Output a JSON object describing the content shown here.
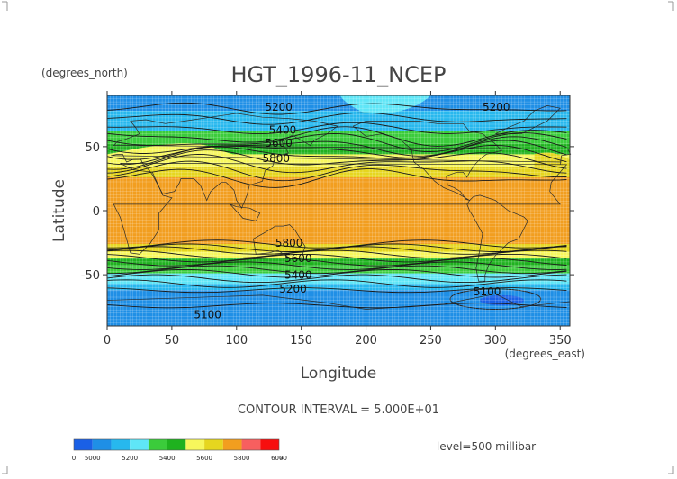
{
  "chart_data": {
    "type": "contour",
    "title": "HGT_1996-11_NCEP",
    "xlabel": "Longitude",
    "ylabel": "Latitude",
    "x_unit": "(degrees_east)",
    "y_unit": "(degrees_north)",
    "xlim": [
      0,
      357.5
    ],
    "ylim": [
      -90,
      90
    ],
    "x_ticks": [
      0,
      50,
      100,
      150,
      200,
      250,
      300,
      350
    ],
    "y_ticks": [
      -50,
      0,
      50
    ],
    "grid": true,
    "contour_interval_text": "CONTOUR INTERVAL = 5.000E+01",
    "level_text": "level=500 millibar",
    "colorbar": {
      "boundaries": [
        "0",
        "5000",
        "5200",
        "5400",
        "5600",
        "5800",
        "6000",
        "∞"
      ],
      "colors": [
        "#1a60e6",
        "#1f8fe6",
        "#27b8ee",
        "#5fe6f7",
        "#3bcc3b",
        "#1fb21f",
        "#f7f75c",
        "#e6d61f",
        "#f29e1f",
        "#f75f5f",
        "#f70f0f"
      ]
    },
    "contour_labels": [
      {
        "text": "5200",
        "lon": 122,
        "lat": 78
      },
      {
        "text": "5400",
        "lon": 125,
        "lat": 60
      },
      {
        "text": "5600",
        "lon": 122,
        "lat": 50
      },
      {
        "text": "5800",
        "lon": 120,
        "lat": 38
      },
      {
        "text": "5200",
        "lon": 290,
        "lat": 78
      },
      {
        "text": "5800",
        "lon": 130,
        "lat": -28
      },
      {
        "text": "5600",
        "lon": 137,
        "lat": -40
      },
      {
        "text": "5400",
        "lon": 137,
        "lat": -53
      },
      {
        "text": "5200",
        "lon": 133,
        "lat": -64
      },
      {
        "text": "5100",
        "lon": 67,
        "lat": -84
      },
      {
        "text": "5100",
        "lon": 283,
        "lat": -66
      }
    ]
  }
}
